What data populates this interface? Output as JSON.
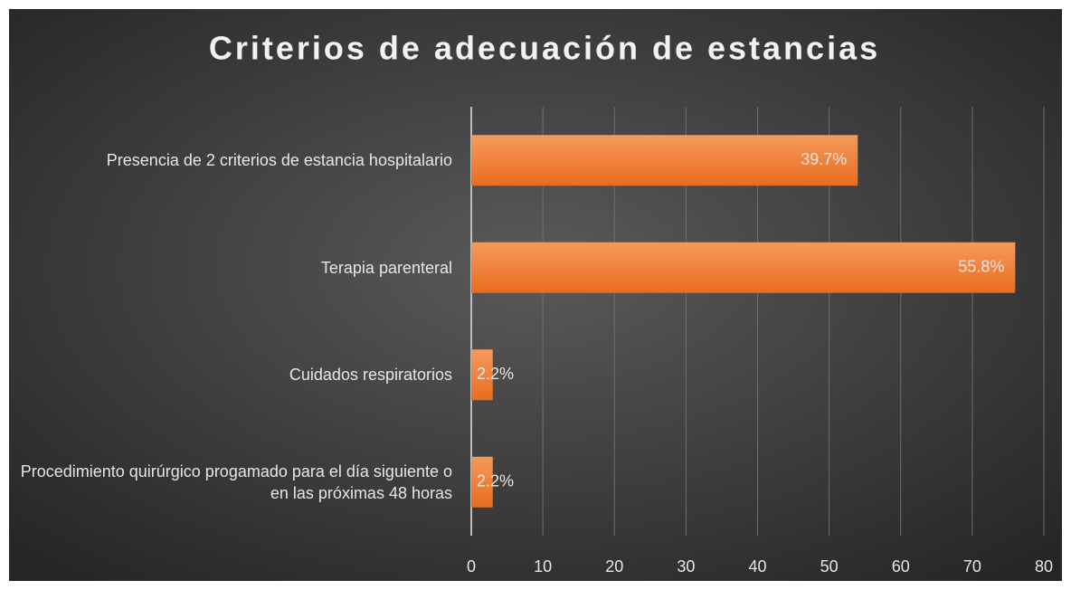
{
  "chart_data": {
    "type": "bar",
    "orientation": "horizontal",
    "title": "Criterios de adecuación de estancias",
    "categories": [
      "Presencia de 2 criterios de estancia hospitalario",
      "Terapia parenteral",
      "Cuidados respiratorios",
      "Procedimiento quirúrgico progamado para el día siguiente o en las próximas 48 horas"
    ],
    "values": [
      54,
      76,
      3,
      3
    ],
    "value_labels": [
      "39.7%",
      "55.8%",
      "2.2%",
      "2.2%"
    ],
    "color": "#ee7a2f",
    "xlim": [
      0,
      80
    ],
    "xticks": [
      0,
      10,
      20,
      30,
      40,
      50,
      60,
      70,
      80
    ],
    "grid": true
  }
}
